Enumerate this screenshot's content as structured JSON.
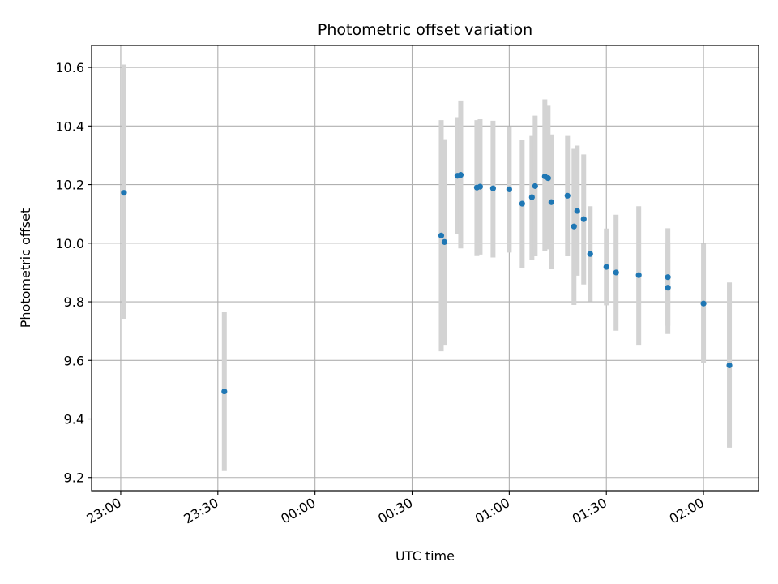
{
  "chart_data": {
    "type": "scatter",
    "title": "Photometric offset variation",
    "xlabel": "UTC time",
    "ylabel": "Photometric offset",
    "xlim": [
      "22:51",
      "02:17"
    ],
    "ylim": [
      9.155,
      10.675
    ],
    "x_ticks": [
      "23:00",
      "23:30",
      "00:00",
      "00:30",
      "01:00",
      "01:30",
      "02:00"
    ],
    "y_ticks": [
      "9.2",
      "9.4",
      "9.6",
      "9.8",
      "10.0",
      "10.2",
      "10.4",
      "10.6"
    ],
    "grid": true,
    "colors": {
      "point": "#1f77b4",
      "errorbar": "#d3d3d3",
      "grid": "#b0b0b0"
    },
    "points": [
      {
        "x": "23:01",
        "y": 10.172,
        "yerr_low": 9.742,
        "yerr_high": 10.61
      },
      {
        "x": "23:32",
        "y": 9.494,
        "yerr_low": 9.222,
        "yerr_high": 9.764
      },
      {
        "x": "00:39",
        "y": 10.026,
        "yerr_low": 9.631,
        "yerr_high": 10.42
      },
      {
        "x": "00:40",
        "y": 10.004,
        "yerr_low": 9.653,
        "yerr_high": 10.355
      },
      {
        "x": "00:44",
        "y": 10.23,
        "yerr_low": 10.032,
        "yerr_high": 10.43
      },
      {
        "x": "00:45",
        "y": 10.233,
        "yerr_low": 9.982,
        "yerr_high": 10.487
      },
      {
        "x": "00:50",
        "y": 10.19,
        "yerr_low": 9.956,
        "yerr_high": 10.42
      },
      {
        "x": "00:51",
        "y": 10.193,
        "yerr_low": 9.961,
        "yerr_high": 10.423
      },
      {
        "x": "00:55",
        "y": 10.187,
        "yerr_low": 9.951,
        "yerr_high": 10.418
      },
      {
        "x": "01:00",
        "y": 10.184,
        "yerr_low": 9.968,
        "yerr_high": 10.398
      },
      {
        "x": "01:04",
        "y": 10.135,
        "yerr_low": 9.916,
        "yerr_high": 10.354
      },
      {
        "x": "01:07",
        "y": 10.157,
        "yerr_low": 9.944,
        "yerr_high": 10.366
      },
      {
        "x": "01:08",
        "y": 10.195,
        "yerr_low": 9.955,
        "yerr_high": 10.435
      },
      {
        "x": "01:11",
        "y": 10.228,
        "yerr_low": 9.974,
        "yerr_high": 10.491
      },
      {
        "x": "01:12",
        "y": 10.222,
        "yerr_low": 9.979,
        "yerr_high": 10.469
      },
      {
        "x": "01:13",
        "y": 10.14,
        "yerr_low": 9.911,
        "yerr_high": 10.371
      },
      {
        "x": "01:18",
        "y": 10.162,
        "yerr_low": 9.955,
        "yerr_high": 10.366
      },
      {
        "x": "01:20",
        "y": 10.057,
        "yerr_low": 9.789,
        "yerr_high": 10.322
      },
      {
        "x": "01:21",
        "y": 10.11,
        "yerr_low": 9.889,
        "yerr_high": 10.333
      },
      {
        "x": "01:23",
        "y": 10.082,
        "yerr_low": 9.859,
        "yerr_high": 10.303
      },
      {
        "x": "01:25",
        "y": 9.963,
        "yerr_low": 9.801,
        "yerr_high": 10.126
      },
      {
        "x": "01:30",
        "y": 9.919,
        "yerr_low": 9.788,
        "yerr_high": 10.05
      },
      {
        "x": "01:33",
        "y": 9.9,
        "yerr_low": 9.701,
        "yerr_high": 10.097
      },
      {
        "x": "01:40",
        "y": 9.891,
        "yerr_low": 9.653,
        "yerr_high": 10.126
      },
      {
        "x": "01:49",
        "y": 9.884,
        "yerr_low": 9.718,
        "yerr_high": 10.051
      },
      {
        "x": "01:49",
        "y": 9.848,
        "yerr_low": 9.69,
        "yerr_high": 10.001
      },
      {
        "x": "02:00",
        "y": 9.794,
        "yerr_low": 9.59,
        "yerr_high": 9.998
      },
      {
        "x": "02:08",
        "y": 9.583,
        "yerr_low": 9.302,
        "yerr_high": 9.866
      }
    ]
  }
}
